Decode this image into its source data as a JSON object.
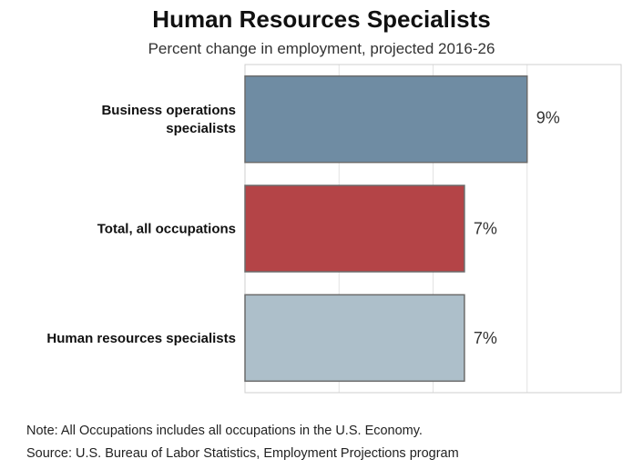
{
  "chart_data": {
    "type": "bar",
    "orientation": "horizontal",
    "title": "Human Resources Specialists",
    "subtitle": "Percent change in employment, projected 2016-26",
    "categories": [
      [
        "Business operations",
        "specialists"
      ],
      [
        "Total, all occupations"
      ],
      [
        "Human resources specialists"
      ]
    ],
    "values": [
      9,
      7,
      7
    ],
    "value_labels": [
      "9%",
      "7%",
      "7%"
    ],
    "colors": [
      "#6f8ca3",
      "#b44447",
      "#adbfca"
    ],
    "xlim": [
      0,
      12
    ],
    "grid": true
  },
  "notes": {
    "note": "Note: All Occupations includes all occupations in the U.S. Economy.",
    "source": "Source: U.S. Bureau of Labor Statistics, Employment Projections program"
  }
}
